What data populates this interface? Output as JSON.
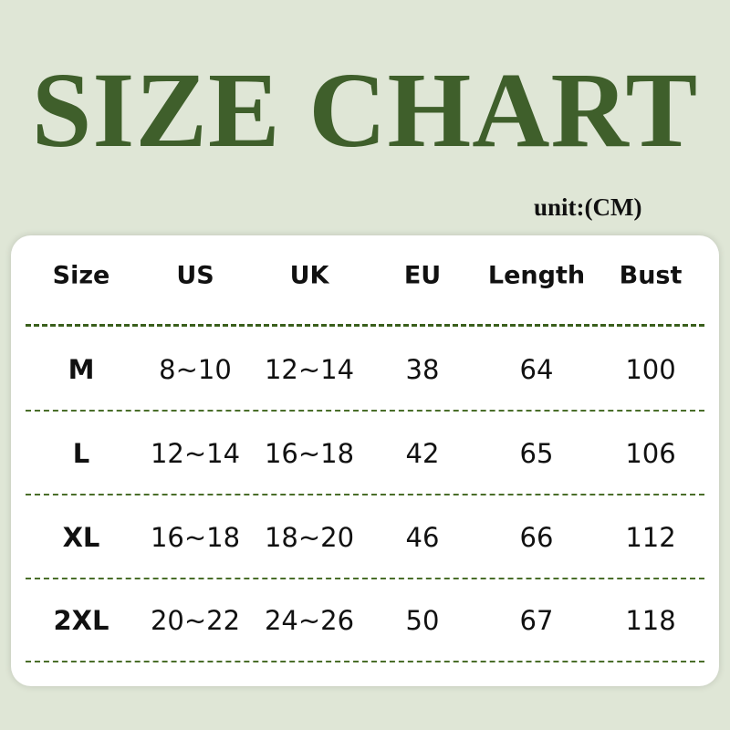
{
  "title": "SIZE CHART",
  "unit": "unit:(CM)",
  "accent_color": "#3f5f2b",
  "table": {
    "headers": [
      "Size",
      "US",
      "UK",
      "EU",
      "Length",
      "Bust"
    ],
    "rows": [
      [
        "M",
        "8~10",
        "12~14",
        "38",
        "64",
        "100"
      ],
      [
        "L",
        "12~14",
        "16~18",
        "42",
        "65",
        "106"
      ],
      [
        "XL",
        "16~18",
        "18~20",
        "46",
        "66",
        "112"
      ],
      [
        "2XL",
        "20~22",
        "24~26",
        "50",
        "67",
        "118"
      ]
    ]
  }
}
